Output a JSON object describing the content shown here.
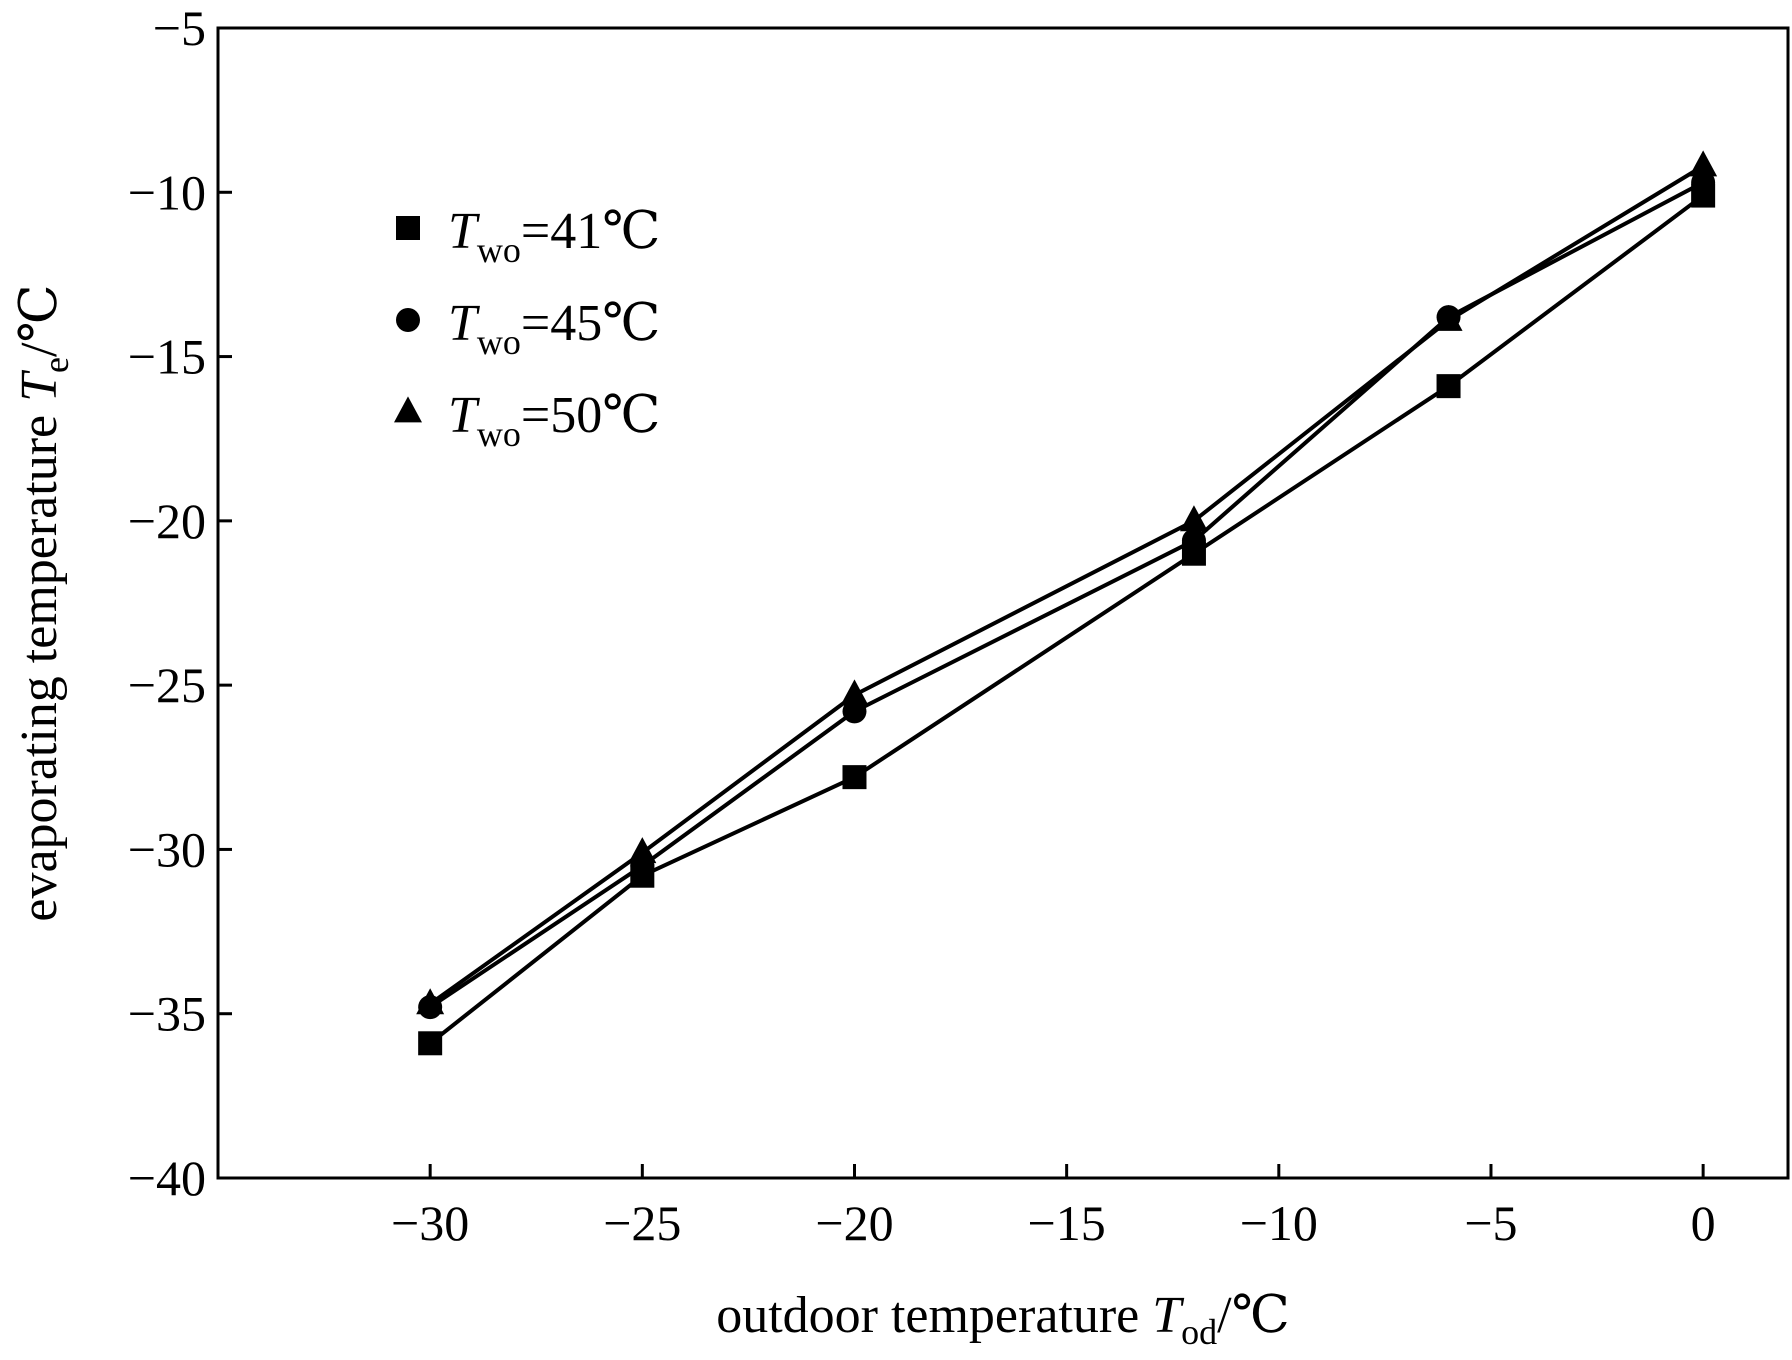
{
  "chart_data": {
    "type": "line",
    "xlabel": {
      "prefix": "outdoor temperature ",
      "var": "T",
      "sub": "od",
      "suffix": "/℃"
    },
    "ylabel": {
      "prefix": "evaporating temperature ",
      "var": "T",
      "sub": "e",
      "suffix": "/℃"
    },
    "xlim": [
      -35,
      2
    ],
    "ylim": [
      -40,
      -5
    ],
    "x_ticks": [
      -30,
      -25,
      -20,
      -15,
      -10,
      -5,
      0
    ],
    "y_ticks": [
      -40,
      -35,
      -30,
      -25,
      -20,
      -15,
      -10,
      -5
    ],
    "x_tick_labels": [
      "−30",
      "−25",
      "−20",
      "−15",
      "−10",
      "−5",
      "0"
    ],
    "y_tick_labels": [
      "−40",
      "−35",
      "−30",
      "−25",
      "−20",
      "−15",
      "−10",
      "−5"
    ],
    "x": [
      -30,
      -25,
      -20,
      -12,
      -6,
      0
    ],
    "series": [
      {
        "name": "Two=41℃",
        "label_var": "T",
        "label_sub": "wo",
        "label_rest": "=41℃",
        "marker": "square",
        "values": [
          -35.9,
          -30.8,
          -27.8,
          -21.0,
          -15.9,
          -10.1
        ]
      },
      {
        "name": "Two=45℃",
        "label_var": "T",
        "label_sub": "wo",
        "label_rest": "=45℃",
        "marker": "circle",
        "values": [
          -34.8,
          -30.5,
          -25.8,
          -20.6,
          -13.8,
          -9.7
        ]
      },
      {
        "name": "Two=50℃",
        "label_var": "T",
        "label_sub": "wo",
        "label_rest": "=50℃",
        "marker": "triangle",
        "values": [
          -34.7,
          -30.1,
          -25.3,
          -20.0,
          -13.9,
          -9.2
        ]
      }
    ],
    "legend_position": "top-left",
    "grid": false
  }
}
